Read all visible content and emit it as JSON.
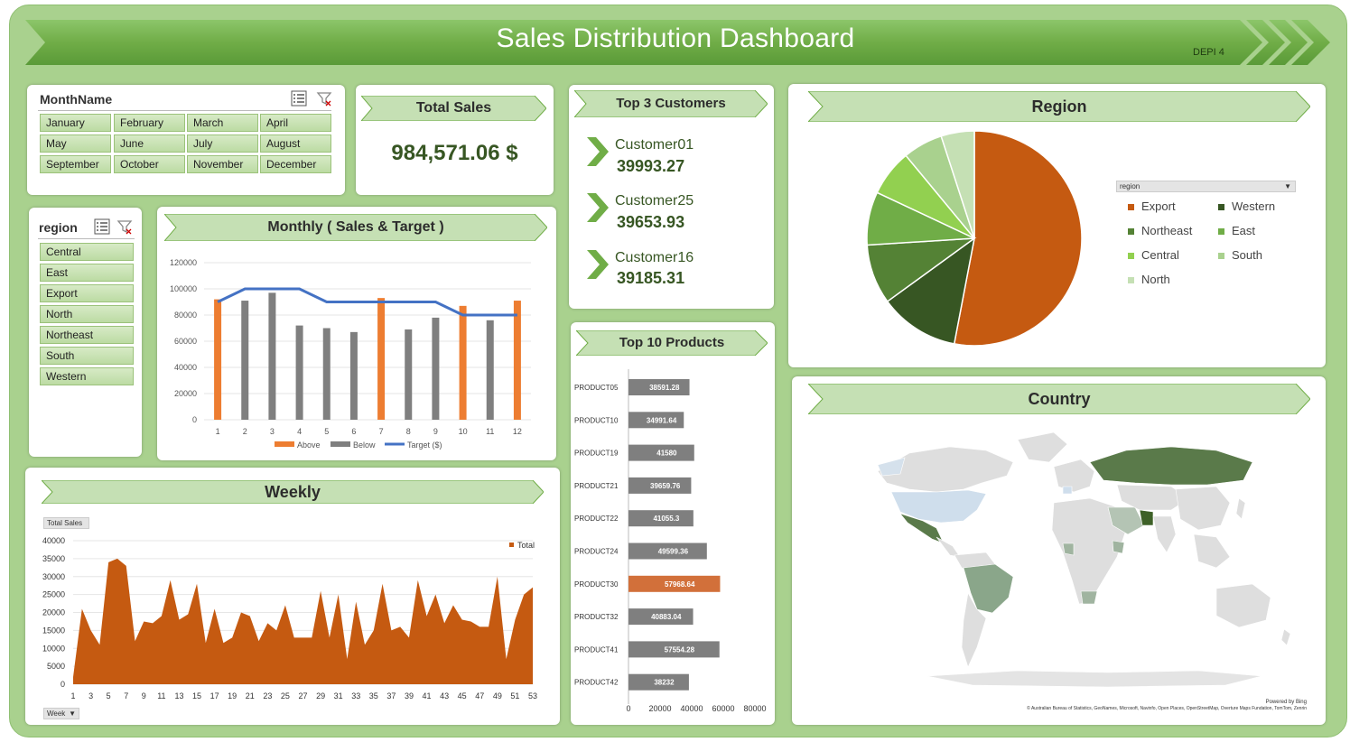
{
  "header": {
    "title": "Sales Distribution Dashboard",
    "subtitle": "DEPI 4"
  },
  "month_slicer": {
    "title": "MonthName",
    "items": [
      "January",
      "February",
      "March",
      "April",
      "May",
      "June",
      "July",
      "August",
      "September",
      "October",
      "November",
      "December"
    ]
  },
  "region_slicer": {
    "title": "region",
    "items": [
      "Central",
      "East",
      "Export",
      "North",
      "Northeast",
      "South",
      "Western"
    ]
  },
  "total_sales": {
    "title": "Total Sales",
    "value": "984,571.06 $"
  },
  "top_customers": {
    "title": "Top 3 Customers",
    "items": [
      {
        "name": "Customer01",
        "value": "39993.27"
      },
      {
        "name": "Customer25",
        "value": "39653.93"
      },
      {
        "name": "Customer16",
        "value": "39185.31"
      }
    ]
  },
  "monthly": {
    "title": "Monthly ( Sales & Target )",
    "legend": [
      "Above",
      "Below",
      "Target ($)"
    ]
  },
  "weekly": {
    "title": "Weekly",
    "field_button": "Total Sales",
    "legend": "Total",
    "axis_button": "Week"
  },
  "products": {
    "title": "Top 10 Products"
  },
  "region_chart": {
    "title": "Region",
    "filter_label": "region"
  },
  "country": {
    "title": "Country",
    "powered": "Powered by Bing",
    "credits": "© Australian Bureau of Statistics, GeoNames, Microsoft, Navinfo, Open Places, OpenStreetMap, Overture Maps Fundation, TomTom, Zenrin"
  },
  "colors": {
    "banner": "#70ad47",
    "above": "#ed7d31",
    "below": "#7f7f7f",
    "target": "#4472c4",
    "area": "#c55a11",
    "accent_green": "#375623"
  },
  "chart_data": [
    {
      "type": "bar",
      "title": "Monthly ( Sales & Target )",
      "categories": [
        "1",
        "2",
        "3",
        "4",
        "5",
        "6",
        "7",
        "8",
        "9",
        "10",
        "11",
        "12"
      ],
      "series": [
        {
          "name": "Above",
          "values": [
            92000,
            0,
            0,
            0,
            0,
            0,
            93000,
            0,
            0,
            87000,
            0,
            91000
          ]
        },
        {
          "name": "Below",
          "values": [
            0,
            91000,
            97000,
            72000,
            70000,
            67000,
            0,
            69000,
            78000,
            0,
            76000,
            0
          ]
        },
        {
          "name": "Target ($)",
          "type": "line",
          "values": [
            90000,
            100000,
            100000,
            100000,
            90000,
            90000,
            90000,
            90000,
            90000,
            80000,
            80000,
            80000
          ]
        }
      ],
      "ylim": [
        0,
        120000
      ],
      "yticks": [
        "0",
        "20000",
        "40000",
        "60000",
        "80000",
        "100000",
        "120000"
      ],
      "legend_position": "bottom"
    },
    {
      "type": "area",
      "title": "Weekly",
      "x": [
        1,
        2,
        3,
        4,
        5,
        6,
        7,
        8,
        9,
        10,
        11,
        12,
        13,
        14,
        15,
        16,
        17,
        18,
        19,
        20,
        21,
        22,
        23,
        24,
        25,
        26,
        27,
        28,
        29,
        30,
        31,
        32,
        33,
        34,
        35,
        36,
        37,
        38,
        39,
        40,
        41,
        42,
        43,
        44,
        45,
        46,
        47,
        48,
        49,
        50,
        51,
        52,
        53
      ],
      "series": [
        {
          "name": "Total",
          "values": [
            2000,
            21000,
            15000,
            11000,
            34000,
            35000,
            33000,
            12000,
            17500,
            17000,
            19000,
            29000,
            18000,
            19500,
            28000,
            11500,
            21000,
            11500,
            13000,
            20000,
            19000,
            12000,
            17000,
            15000,
            22000,
            13000,
            13000,
            13000,
            26000,
            13000,
            25000,
            7000,
            23000,
            11000,
            15000,
            28000,
            15000,
            16000,
            13000,
            29000,
            19000,
            25000,
            17000,
            22000,
            18000,
            17500,
            16000,
            16000,
            30000,
            7000,
            18000,
            25000,
            27000
          ]
        }
      ],
      "ylim": [
        0,
        40000
      ],
      "yticks": [
        "0",
        "5000",
        "10000",
        "15000",
        "20000",
        "25000",
        "30000",
        "35000",
        "40000"
      ],
      "xticks": [
        "1",
        "3",
        "5",
        "7",
        "9",
        "11",
        "13",
        "15",
        "17",
        "19",
        "21",
        "23",
        "25",
        "27",
        "29",
        "31",
        "33",
        "35",
        "37",
        "39",
        "41",
        "43",
        "45",
        "47",
        "49",
        "51",
        "53"
      ],
      "legend_position": "top-right"
    },
    {
      "type": "bar",
      "title": "Top 10 Products",
      "orientation": "horizontal",
      "categories": [
        "PRODUCT05",
        "PRODUCT10",
        "PRODUCT19",
        "PRODUCT21",
        "PRODUCT22",
        "PRODUCT24",
        "PRODUCT30",
        "PRODUCT32",
        "PRODUCT41",
        "PRODUCT42"
      ],
      "values": [
        38591.28,
        34991.64,
        41580,
        39659.76,
        41055.3,
        49599.36,
        57968.64,
        40883.04,
        57554.28,
        38232
      ],
      "labels": [
        "38591.28",
        "34991.64",
        "41580",
        "39659.76",
        "41055.3",
        "49599.36",
        "57968.64",
        "40883.04",
        "57554.28",
        "38232"
      ],
      "highlight": "PRODUCT30",
      "xlim": [
        0,
        80000
      ],
      "xticks": [
        "0",
        "20000",
        "40000",
        "60000",
        "80000"
      ]
    },
    {
      "type": "pie",
      "title": "Region",
      "categories": [
        "Export",
        "Western",
        "Northeast",
        "East",
        "Central",
        "South",
        "North"
      ],
      "values": [
        53,
        12,
        9,
        8,
        7,
        6,
        5
      ],
      "colors": [
        "#c55a11",
        "#375623",
        "#548235",
        "#70ad47",
        "#92d050",
        "#a9d18e",
        "#c5e0b4"
      ],
      "legend_position": "right"
    }
  ]
}
